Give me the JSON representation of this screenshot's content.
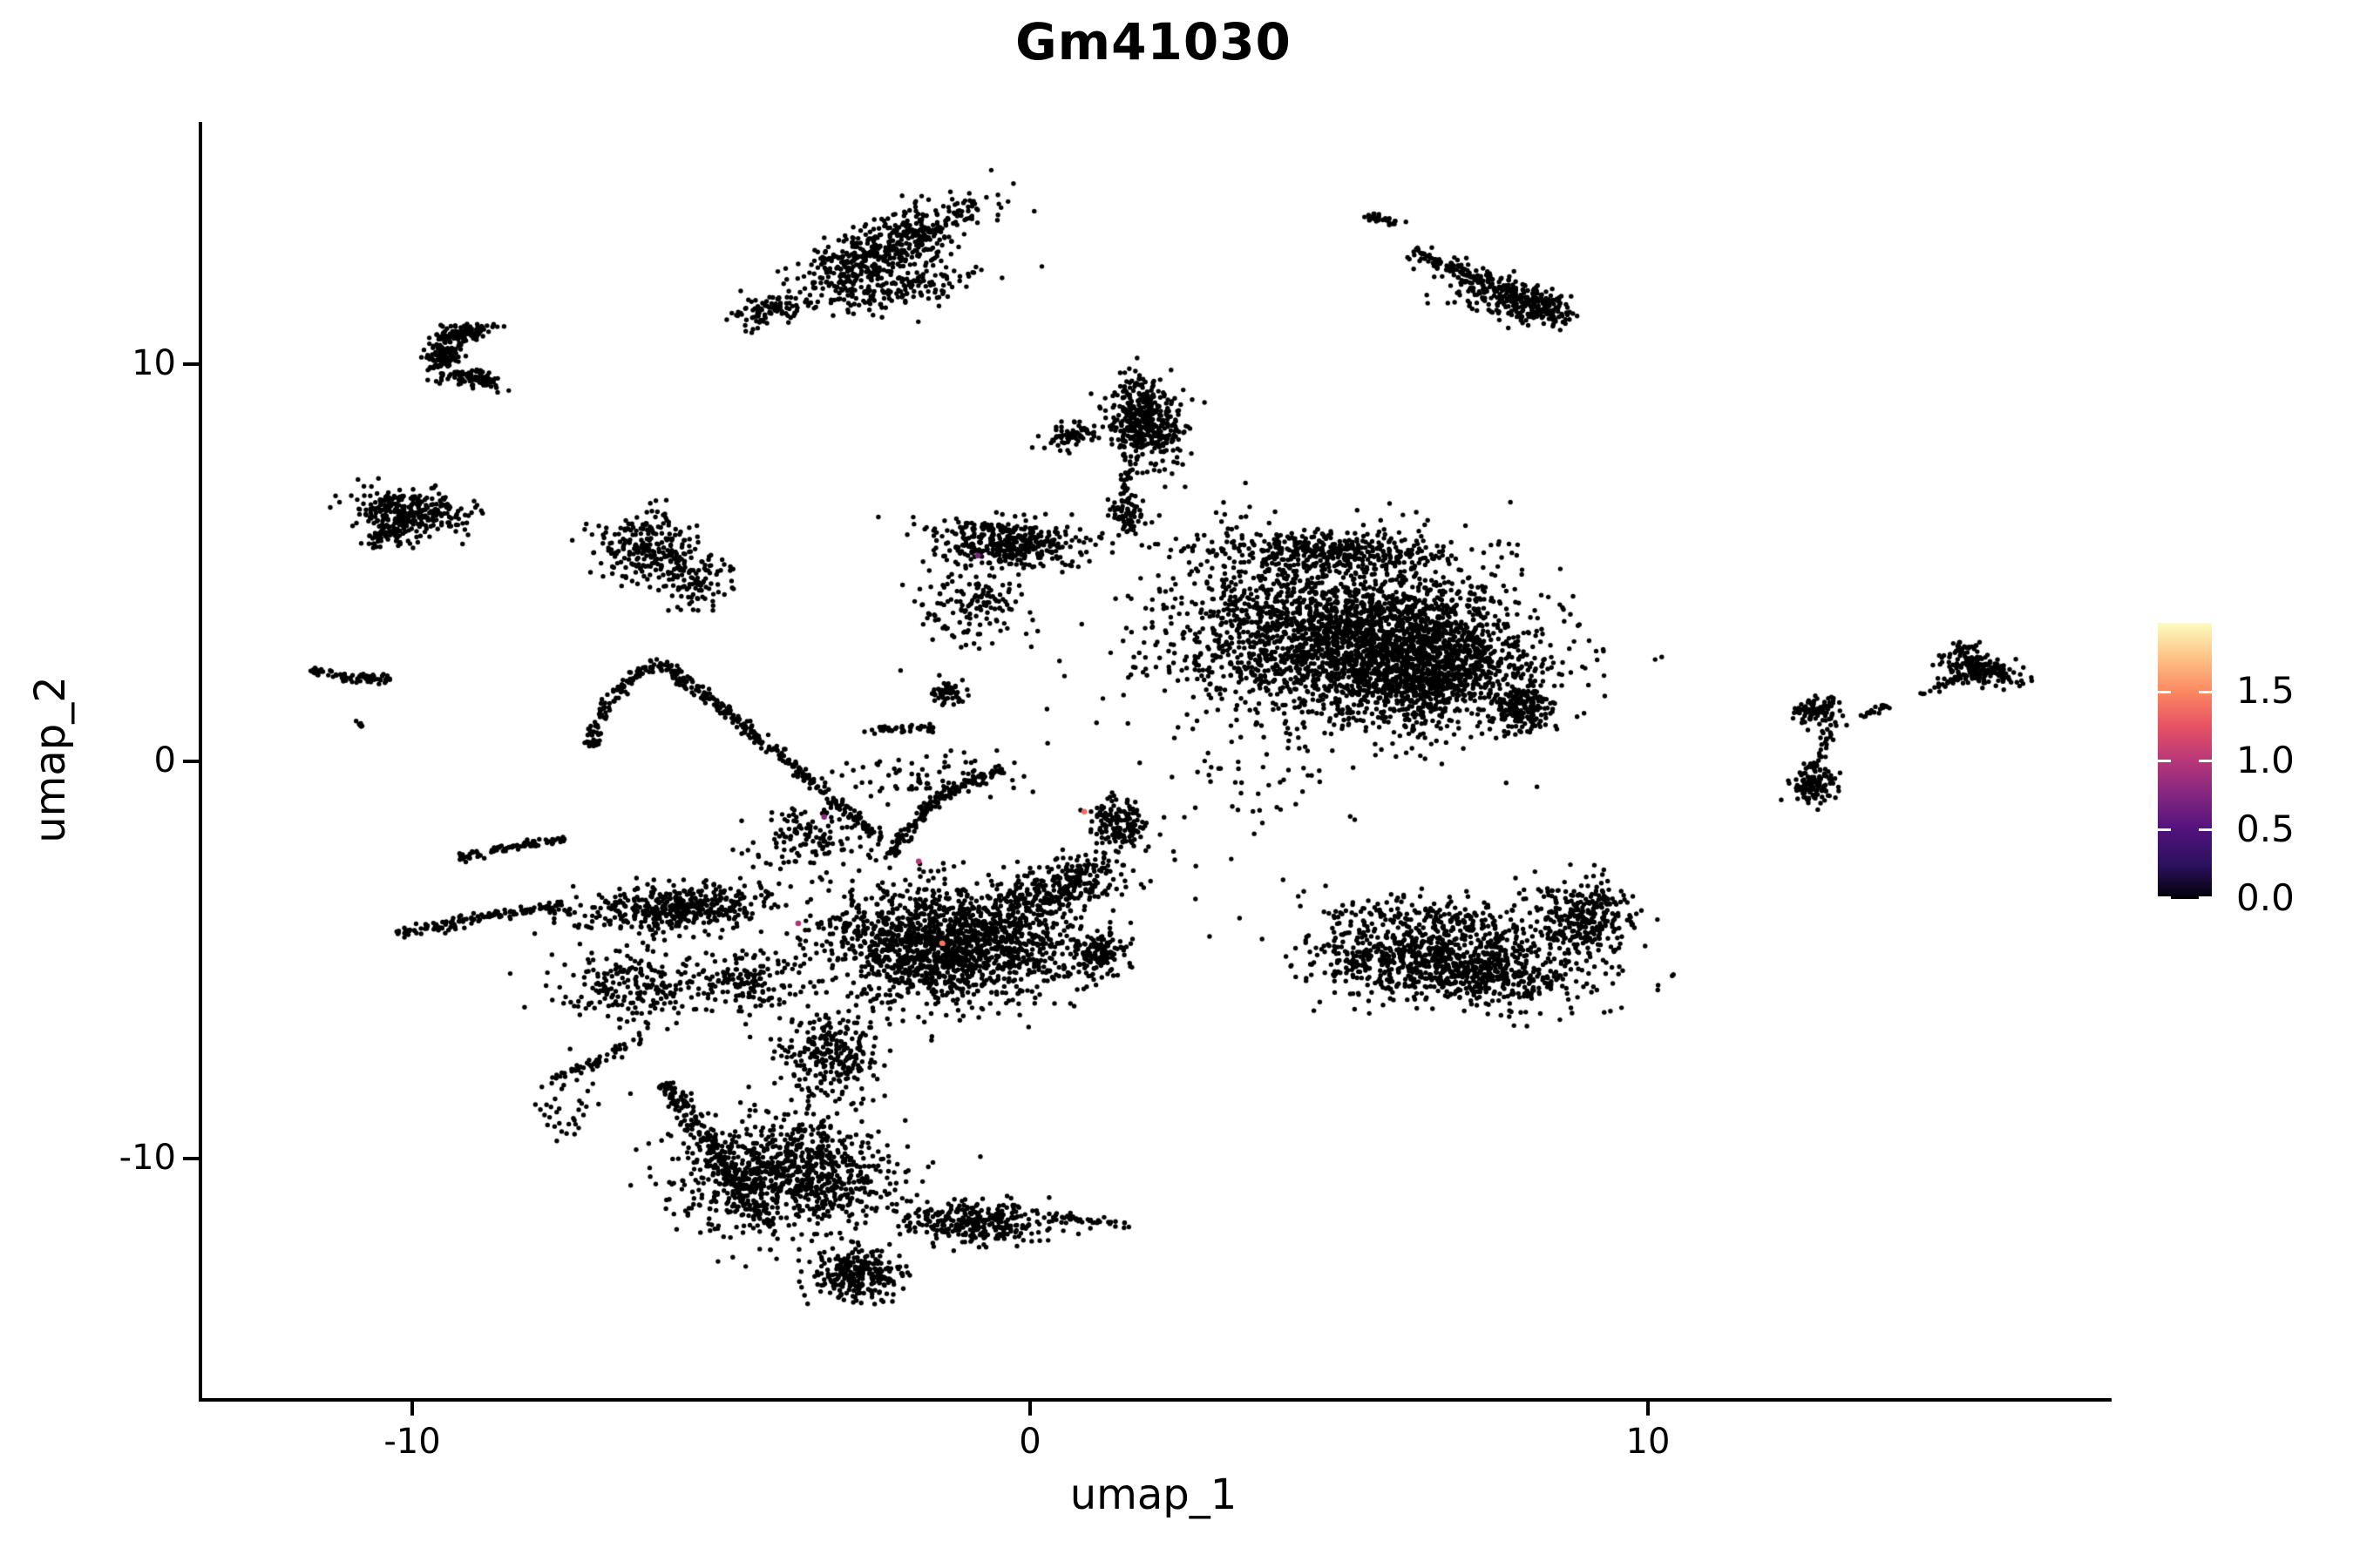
{
  "chart_data": {
    "type": "scatter",
    "title": "Gm41030",
    "xlabel": "umap_1",
    "ylabel": "umap_2",
    "xlim": [
      -13.456,
      17.447
    ],
    "ylim": [
      -16.034,
      16.096
    ],
    "xticks": {
      "values": [
        -10,
        0,
        10
      ],
      "labels": [
        "-10",
        "0",
        "10"
      ]
    },
    "yticks": {
      "values": [
        -10,
        0,
        10
      ],
      "labels": [
        "-10",
        "0",
        "10"
      ]
    },
    "grid": false,
    "background": "#ffffff",
    "point_color": "#000000",
    "point_radius_px": 2.7,
    "seed": 42,
    "colorbar": {
      "min": 0.0,
      "max": 2.0,
      "ticks": [
        0.0,
        0.5,
        1.0,
        1.5
      ],
      "labels": [
        "0.0",
        "0.5",
        "1.0",
        "1.5"
      ],
      "colormap": "magma",
      "stops": [
        "#000004",
        "#2c115f",
        "#51127c",
        "#822681",
        "#b73779",
        "#e75263",
        "#fb8861",
        "#fec287",
        "#fcfdbf"
      ],
      "position": "right"
    },
    "clusters": [
      {
        "name": "top-mid-main",
        "cx": -2.45,
        "cy": 12.85,
        "rx": 1.95,
        "ry": 0.62,
        "rot": 38,
        "n": 520
      },
      {
        "name": "top-mid-tail",
        "cx": -4.35,
        "cy": 11.35,
        "rx": 0.65,
        "ry": 0.38,
        "rot": 25,
        "n": 90
      },
      {
        "name": "top-mid-under",
        "cx": -2.1,
        "cy": 11.9,
        "rx": 1.35,
        "ry": 0.55,
        "rot": 20,
        "n": 150
      },
      {
        "name": "topright-dash",
        "cx": 5.62,
        "cy": 13.62,
        "rx": 0.3,
        "ry": 0.13,
        "rot": -20,
        "n": 30
      },
      {
        "name": "topright-head",
        "cx": 8.2,
        "cy": 11.45,
        "rx": 0.55,
        "ry": 0.42,
        "rot": -25,
        "n": 180
      },
      {
        "name": "topright-spray",
        "cx": 7.35,
        "cy": 11.8,
        "rx": 0.9,
        "ry": 0.6,
        "rot": -30,
        "n": 110
      },
      {
        "name": "crescent-top",
        "cx": -9.25,
        "cy": 10.75,
        "rx": 0.48,
        "ry": 0.22,
        "rot": 15,
        "n": 120
      },
      {
        "name": "crescent-left",
        "cx": -9.55,
        "cy": 10.15,
        "rx": 0.26,
        "ry": 0.5,
        "rot": 0,
        "n": 120
      },
      {
        "name": "crescent-hook",
        "cx": -9.05,
        "cy": 9.65,
        "rx": 0.42,
        "ry": 0.22,
        "rot": -15,
        "n": 90
      },
      {
        "name": "left-ellipse",
        "cx": -10.1,
        "cy": 6.3,
        "rx": 0.9,
        "ry": 0.5,
        "rot": -8,
        "n": 300
      },
      {
        "name": "left-ellipse-tail",
        "cx": -10.45,
        "cy": 5.7,
        "rx": 0.45,
        "ry": 0.3,
        "rot": 20,
        "n": 70
      },
      {
        "name": "midleft-main",
        "cx": -6.25,
        "cy": 5.35,
        "rx": 0.8,
        "ry": 0.85,
        "rot": 0,
        "n": 240
      },
      {
        "name": "midleft-spray",
        "cx": -5.5,
        "cy": 4.55,
        "rx": 0.65,
        "ry": 0.75,
        "rot": 0,
        "n": 100
      },
      {
        "name": "head-main",
        "cx": 1.78,
        "cy": 8.55,
        "rx": 0.62,
        "ry": 1.05,
        "rot": 10,
        "n": 430
      },
      {
        "name": "head-left-arm",
        "cx": 0.62,
        "cy": 8.2,
        "rx": 0.45,
        "ry": 0.3,
        "rot": 20,
        "n": 70
      },
      {
        "name": "head-tail-knot",
        "cx": 1.52,
        "cy": 6.2,
        "rx": 0.3,
        "ry": 0.45,
        "rot": 0,
        "n": 50
      },
      {
        "name": "band-left",
        "cx": -0.45,
        "cy": 5.5,
        "rx": 1.25,
        "ry": 0.6,
        "rot": -5,
        "n": 400
      },
      {
        "name": "band-under",
        "cx": -0.95,
        "cy": 3.9,
        "rx": 0.8,
        "ry": 1.0,
        "rot": 0,
        "n": 140
      },
      {
        "name": "band-under-knot",
        "cx": -1.35,
        "cy": 1.7,
        "rx": 0.35,
        "ry": 0.3,
        "rot": 0,
        "n": 60
      },
      {
        "name": "rightmass-big",
        "cx": 5.1,
        "cy": 3.1,
        "rx": 2.95,
        "ry": 2.25,
        "rot": -8,
        "n": 2400
      },
      {
        "name": "rightmass-core",
        "cx": 6.2,
        "cy": 2.5,
        "rx": 1.7,
        "ry": 1.5,
        "rot": -10,
        "n": 1100
      },
      {
        "name": "rightmass-topband",
        "cx": 4.6,
        "cy": 5.35,
        "rx": 2.3,
        "ry": 0.5,
        "rot": -3,
        "n": 360
      },
      {
        "name": "rightmass-tip",
        "cx": 7.95,
        "cy": 1.35,
        "rx": 0.4,
        "ry": 0.55,
        "rot": 0,
        "n": 170
      },
      {
        "name": "ycluster-topleft",
        "cx": 12.65,
        "cy": 1.25,
        "rx": 0.42,
        "ry": 0.35,
        "rot": 0,
        "n": 90
      },
      {
        "name": "ycluster-bottom",
        "cx": 12.62,
        "cy": -0.62,
        "rx": 0.32,
        "ry": 0.5,
        "rot": 0,
        "n": 120
      },
      {
        "name": "farright-head",
        "cx": 15.3,
        "cy": 2.3,
        "rx": 0.6,
        "ry": 0.35,
        "rot": -18,
        "n": 180
      },
      {
        "name": "farright-topknot",
        "cx": 15.05,
        "cy": 2.85,
        "rx": 0.18,
        "ry": 0.18,
        "rot": 0,
        "n": 25
      },
      {
        "name": "banana-main",
        "cx": 6.7,
        "cy": -5.15,
        "rx": 2.25,
        "ry": 0.9,
        "rot": -10,
        "n": 950
      },
      {
        "name": "banana-right",
        "cx": 8.9,
        "cy": -3.9,
        "rx": 0.8,
        "ry": 0.95,
        "rot": 15,
        "n": 300
      },
      {
        "name": "banana-top",
        "cx": 6.5,
        "cy": -3.95,
        "rx": 1.7,
        "ry": 0.6,
        "rot": -8,
        "n": 220
      },
      {
        "name": "bird-arm",
        "cx": -5.85,
        "cy": -3.7,
        "rx": 1.55,
        "ry": 0.6,
        "rot": 5,
        "n": 460
      },
      {
        "name": "bird-armscatter",
        "cx": -6.4,
        "cy": -5.6,
        "rx": 1.3,
        "ry": 1.0,
        "rot": 10,
        "n": 220
      },
      {
        "name": "haze-main",
        "cx": -1.35,
        "cy": -4.6,
        "rx": 2.05,
        "ry": 1.45,
        "rot": -5,
        "n": 1650
      },
      {
        "name": "haze-right-tip",
        "cx": 1.05,
        "cy": -4.85,
        "rx": 0.5,
        "ry": 0.5,
        "rot": 0,
        "n": 130
      },
      {
        "name": "haze-knot",
        "cx": 1.4,
        "cy": -1.55,
        "rx": 0.5,
        "ry": 0.6,
        "rot": 0,
        "n": 150
      },
      {
        "name": "haze-rise",
        "cx": 0.35,
        "cy": -3.2,
        "rx": 1.35,
        "ry": 0.65,
        "rot": 35,
        "n": 300
      },
      {
        "name": "scatter-mid",
        "cx": -3.6,
        "cy": -1.9,
        "rx": 1.0,
        "ry": 0.9,
        "rot": 0,
        "n": 130
      },
      {
        "name": "scatter-top",
        "cx": -1.7,
        "cy": -0.3,
        "rx": 1.5,
        "ry": 0.7,
        "rot": 0,
        "n": 80
      },
      {
        "name": "connector",
        "cx": -3.3,
        "cy": -7.35,
        "rx": 0.85,
        "ry": 1.05,
        "rot": 0,
        "n": 260
      },
      {
        "name": "connector-left",
        "cx": -4.6,
        "cy": -5.6,
        "rx": 0.8,
        "ry": 0.8,
        "rot": 0,
        "n": 150
      },
      {
        "name": "triangle-main",
        "cx": -4.0,
        "cy": -10.4,
        "rx": 1.75,
        "ry": 1.5,
        "rot": 0,
        "n": 950
      },
      {
        "name": "triangle-tip",
        "cx": -2.85,
        "cy": -12.9,
        "rx": 0.7,
        "ry": 0.6,
        "rot": 0,
        "n": 280
      },
      {
        "name": "triangle-rightband",
        "cx": -0.9,
        "cy": -11.6,
        "rx": 1.3,
        "ry": 0.5,
        "rot": -5,
        "n": 330
      },
      {
        "name": "stragglers",
        "cx": -7.55,
        "cy": -8.9,
        "rx": 0.5,
        "ry": 0.6,
        "rot": 0,
        "n": 30
      },
      {
        "name": "outliers-mid",
        "cx": 3.4,
        "cy": -0.6,
        "rx": 2.2,
        "ry": 1.6,
        "rot": 0,
        "n": 40
      }
    ],
    "filaments": [
      {
        "name": "farleft-chain",
        "p0": [
          -11.75,
          2.3
        ],
        "c": [
          -11.0,
          2.05
        ],
        "p1": [
          -10.4,
          2.1
        ],
        "w": 0.12,
        "n": 70
      },
      {
        "name": "farleft-dash",
        "p0": [
          -10.95,
          1.05
        ],
        "c": [
          -10.9,
          0.95
        ],
        "p1": [
          -10.85,
          0.85
        ],
        "w": 0.05,
        "n": 6
      },
      {
        "name": "head-tail",
        "p0": [
          1.55,
          7.4
        ],
        "c": [
          1.45,
          6.7
        ],
        "p1": [
          1.6,
          5.7
        ],
        "w": 0.12,
        "n": 45
      },
      {
        "name": "topright-streak",
        "p0": [
          6.1,
          12.85
        ],
        "c": [
          7.0,
          12.3
        ],
        "p1": [
          7.9,
          11.7
        ],
        "w": 0.22,
        "n": 130
      },
      {
        "name": "ycluster-chain",
        "p0": [
          12.88,
          0.92
        ],
        "c": [
          12.8,
          0.2
        ],
        "p1": [
          12.62,
          -0.15
        ],
        "w": 0.08,
        "n": 28
      },
      {
        "name": "ycluster-arm",
        "p0": [
          13.3,
          1.05
        ],
        "c": [
          13.55,
          1.25
        ],
        "p1": [
          13.85,
          1.42
        ],
        "w": 0.08,
        "n": 18
      },
      {
        "name": "farright-chain",
        "p0": [
          14.35,
          1.7
        ],
        "c": [
          14.7,
          1.95
        ],
        "p1": [
          15.0,
          2.1
        ],
        "w": 0.08,
        "n": 22
      },
      {
        "name": "long-diagonal",
        "p0": [
          -6.0,
          2.45
        ],
        "c": [
          -4.4,
          0.6
        ],
        "p1": [
          -2.45,
          -2.0
        ],
        "w": 0.15,
        "n": 280
      },
      {
        "name": "left-arc",
        "p0": [
          -7.15,
          0.35
        ],
        "c": [
          -7.05,
          1.8
        ],
        "p1": [
          -6.05,
          2.5
        ],
        "w": 0.13,
        "n": 110
      },
      {
        "name": "inner-arc",
        "p0": [
          -0.5,
          -0.2
        ],
        "c": [
          -1.7,
          -0.75
        ],
        "p1": [
          -2.3,
          -2.35
        ],
        "w": 0.14,
        "n": 150
      },
      {
        "name": "leftarm-chain",
        "p0": [
          -10.3,
          -4.35
        ],
        "c": [
          -9.0,
          -3.9
        ],
        "p1": [
          -7.5,
          -3.6
        ],
        "w": 0.14,
        "n": 140
      },
      {
        "name": "leftarm-chain2",
        "p0": [
          -9.35,
          -2.45
        ],
        "c": [
          -8.4,
          -2.1
        ],
        "p1": [
          -7.55,
          -1.95
        ],
        "w": 0.12,
        "n": 80
      },
      {
        "name": "down-chain",
        "p0": [
          -6.3,
          -6.9
        ],
        "c": [
          -7.0,
          -7.5
        ],
        "p1": [
          -7.95,
          -8.25
        ],
        "w": 0.15,
        "n": 55
      },
      {
        "name": "triangle-leftedge",
        "p0": [
          -5.95,
          -8.05
        ],
        "c": [
          -5.3,
          -9.6
        ],
        "p1": [
          -4.25,
          -11.7
        ],
        "w": 0.22,
        "n": 220
      },
      {
        "name": "triangle-rchain",
        "p0": [
          0.35,
          -11.45
        ],
        "c": [
          1.0,
          -11.6
        ],
        "p1": [
          1.62,
          -11.7
        ],
        "w": 0.1,
        "n": 35
      },
      {
        "name": "top-chain-small",
        "p0": [
          -2.75,
          0.75
        ],
        "c": [
          -2.2,
          0.9
        ],
        "p1": [
          -1.6,
          0.8
        ],
        "w": 0.1,
        "n": 40
      }
    ],
    "highlight_points": [
      {
        "x": -0.9,
        "y": 5.18,
        "value": 0.7,
        "color": "#7b2382"
      },
      {
        "x": -3.39,
        "y": -1.4,
        "value": 0.8,
        "color": "#8c2981"
      },
      {
        "x": -1.86,
        "y": -2.52,
        "value": 1.0,
        "color": "#b73779"
      },
      {
        "x": -3.81,
        "y": -4.08,
        "value": 1.0,
        "color": "#ad347b"
      },
      {
        "x": -1.48,
        "y": -4.58,
        "value": 1.5,
        "color": "#f8765c"
      },
      {
        "x": 0.82,
        "y": -1.27,
        "value": 1.4,
        "color": "#f06a5a"
      }
    ]
  }
}
